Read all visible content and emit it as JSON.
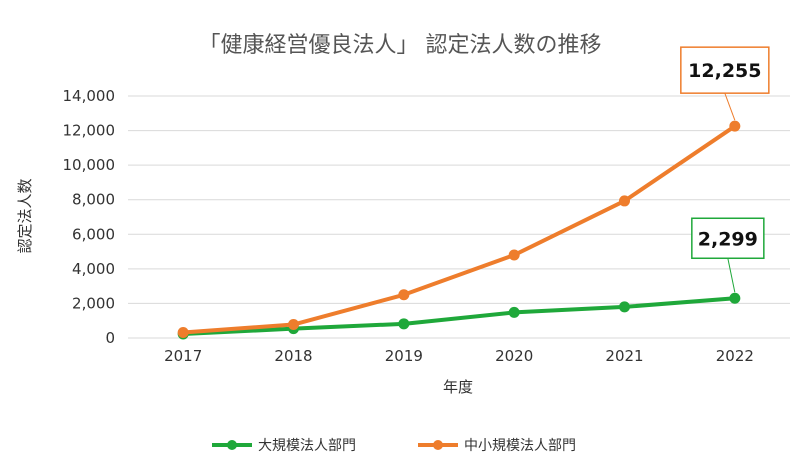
{
  "chart_data": {
    "type": "line",
    "title": "「健康経営優良法人」 認定法人数の推移",
    "xlabel": "年度",
    "ylabel": "認定法人数",
    "categories": [
      "2017",
      "2018",
      "2019",
      "2020",
      "2021",
      "2022"
    ],
    "ylim": [
      0,
      14000
    ],
    "yticks": [
      0,
      2000,
      4000,
      6000,
      8000,
      10000,
      12000,
      14000
    ],
    "ytick_labels": [
      "0",
      "2,000",
      "4,000",
      "6,000",
      "8,000",
      "10,000",
      "12,000",
      "14,000"
    ],
    "grid": true,
    "legend_position": "bottom-center",
    "series": [
      {
        "name": "大規模法人部門",
        "color": "#1fa83a",
        "values": [
          230,
          540,
          820,
          1480,
          1800,
          2299
        ]
      },
      {
        "name": "中小規模法人部門",
        "color": "#ee7d2c",
        "values": [
          320,
          780,
          2500,
          4800,
          7930,
          12255
        ]
      }
    ],
    "annotations": [
      {
        "series": "中小規模法人部門",
        "text": "12,255",
        "border_color": "#ee7d2c"
      },
      {
        "series": "大規模法人部門",
        "text": "2,299",
        "border_color": "#1fa83a"
      }
    ]
  }
}
